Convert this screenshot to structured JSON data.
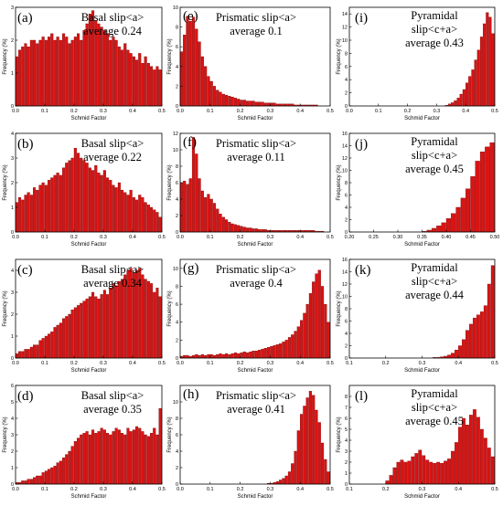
{
  "chart_data": [
    {
      "id": "a",
      "type": "bar",
      "panel_label": "(a)",
      "title_lines": [
        "Basal slip<a>",
        "average 0.24"
      ],
      "xlabel": "Schmid Factor",
      "ylabel": "Frequency (%)",
      "xlim": [
        0,
        0.5
      ],
      "ylim": [
        0,
        3
      ],
      "xticks": [
        "0.0",
        "0.1",
        "0.2",
        "0.3",
        "0.4",
        "0.5"
      ],
      "yticks": [
        "0",
        "1",
        "2",
        "3"
      ],
      "bin_start": 0,
      "bin_width": 0.01,
      "values": [
        1.5,
        1.7,
        1.8,
        1.9,
        1.8,
        2.0,
        2.0,
        1.9,
        2.0,
        2.1,
        2.0,
        2.1,
        2.2,
        2.0,
        2.1,
        2.0,
        2.2,
        2.1,
        1.9,
        2.0,
        2.1,
        2.2,
        2.0,
        2.3,
        2.5,
        2.8,
        2.9,
        2.6,
        2.5,
        2.4,
        2.3,
        2.2,
        2.0,
        2.1,
        2.0,
        1.8,
        1.7,
        1.9,
        1.7,
        1.6,
        1.5,
        1.4,
        1.6,
        1.3,
        1.5,
        1.3,
        1.2,
        1.1,
        1.2,
        1.1
      ]
    },
    {
      "id": "b",
      "type": "bar",
      "panel_label": "(b)",
      "title_lines": [
        "Basal slip<a>",
        "average 0.22"
      ],
      "xlabel": "Schmid Factor",
      "ylabel": "Frequency (%)",
      "xlim": [
        0,
        0.5
      ],
      "ylim": [
        0,
        4
      ],
      "xticks": [
        "0.0",
        "0.1",
        "0.2",
        "0.3",
        "0.4",
        "0.5"
      ],
      "yticks": [
        "0",
        "1",
        "2",
        "3",
        "4"
      ],
      "bin_start": 0,
      "bin_width": 0.01,
      "values": [
        1.2,
        1.4,
        1.3,
        1.5,
        1.6,
        1.5,
        1.8,
        1.7,
        1.9,
        2.0,
        1.9,
        2.1,
        2.2,
        2.3,
        2.4,
        2.3,
        2.6,
        2.8,
        2.9,
        3.0,
        3.4,
        3.2,
        3.0,
        2.9,
        2.8,
        2.6,
        2.5,
        2.7,
        2.4,
        2.3,
        2.5,
        2.2,
        2.1,
        1.9,
        1.8,
        2.0,
        1.7,
        1.6,
        1.5,
        1.7,
        1.4,
        1.3,
        1.5,
        1.4,
        1.2,
        1.1,
        1.0,
        0.9,
        0.8,
        0.6
      ]
    },
    {
      "id": "c",
      "type": "bar",
      "panel_label": "(c)",
      "title_lines": [
        "Basal slip<a>",
        "average 0.34"
      ],
      "xlabel": "Schmid Factor",
      "ylabel": "Frequency (%)",
      "xlim": [
        0,
        0.5
      ],
      "ylim": [
        0,
        4.5
      ],
      "xticks": [
        "0.0",
        "0.1",
        "0.2",
        "0.3",
        "0.4",
        "0.5"
      ],
      "yticks": [
        "0",
        "1",
        "2",
        "3",
        "4"
      ],
      "bin_start": 0,
      "bin_width": 0.01,
      "values": [
        0.2,
        0.3,
        0.3,
        0.4,
        0.4,
        0.5,
        0.6,
        0.6,
        0.8,
        0.9,
        1.0,
        1.1,
        1.2,
        1.4,
        1.5,
        1.6,
        1.8,
        1.9,
        2.0,
        2.2,
        2.3,
        2.4,
        2.5,
        2.6,
        2.7,
        2.8,
        3.0,
        2.8,
        2.7,
        2.9,
        3.1,
        2.9,
        3.2,
        3.4,
        3.3,
        3.5,
        3.6,
        3.8,
        4.0,
        4.1,
        3.9,
        4.0,
        4.1,
        3.8,
        3.6,
        3.5,
        3.4,
        3.0,
        3.2,
        2.8
      ]
    },
    {
      "id": "d",
      "type": "bar",
      "panel_label": "(d)",
      "title_lines": [
        "Basal slip<a>",
        "average 0.35"
      ],
      "xlabel": "Schmid Factor",
      "ylabel": "Frequency (%)",
      "xlim": [
        0,
        0.5
      ],
      "ylim": [
        0,
        6
      ],
      "xticks": [
        "0.0",
        "0.1",
        "0.2",
        "0.3",
        "0.4",
        "0.5"
      ],
      "yticks": [
        "0",
        "1",
        "2",
        "3",
        "4",
        "5",
        "6"
      ],
      "bin_start": 0,
      "bin_width": 0.01,
      "values": [
        0.1,
        0.1,
        0.2,
        0.2,
        0.3,
        0.3,
        0.4,
        0.5,
        0.5,
        0.7,
        0.8,
        0.9,
        1.0,
        1.1,
        1.3,
        1.4,
        1.6,
        1.8,
        2.0,
        2.3,
        2.6,
        2.8,
        3.0,
        3.1,
        3.2,
        3.0,
        3.3,
        3.1,
        3.2,
        3.4,
        3.3,
        3.1,
        3.0,
        3.2,
        3.4,
        3.3,
        3.1,
        3.0,
        3.4,
        3.2,
        3.3,
        3.5,
        3.4,
        3.2,
        3.0,
        2.9,
        3.1,
        3.4,
        3.0,
        4.6
      ]
    },
    {
      "id": "e",
      "type": "bar",
      "panel_label": "(e)",
      "title_lines": [
        "Prismatic slip<a>",
        "average 0.1"
      ],
      "xlabel": "Schmid Factor",
      "ylabel": "Frequency (%)",
      "xlim": [
        0,
        0.5
      ],
      "ylim": [
        0,
        10
      ],
      "xticks": [
        "0.0",
        "0.1",
        "0.2",
        "0.3",
        "0.4",
        "0.5"
      ],
      "yticks": [
        "0",
        "2",
        "4",
        "6",
        "8",
        "10"
      ],
      "bin_start": 0,
      "bin_width": 0.01,
      "values": [
        5.5,
        7.2,
        9.1,
        8.6,
        9.0,
        7.8,
        6.5,
        5.0,
        4.0,
        3.0,
        2.5,
        2.0,
        1.6,
        1.4,
        1.2,
        1.1,
        1.0,
        0.9,
        0.8,
        0.7,
        0.6,
        0.6,
        0.5,
        0.5,
        0.5,
        0.4,
        0.4,
        0.4,
        0.3,
        0.3,
        0.3,
        0.3,
        0.2,
        0.2,
        0.2,
        0.2,
        0.2,
        0.2,
        0.1,
        0.1,
        0.1,
        0.1,
        0.1,
        0.1,
        0.1,
        0.1,
        0,
        0,
        0,
        0
      ]
    },
    {
      "id": "f",
      "type": "bar",
      "panel_label": "(f)",
      "title_lines": [
        "Prismatic slip<a>",
        "average 0.11"
      ],
      "xlabel": "Schmid Factor",
      "ylabel": "Frequency (%)",
      "xlim": [
        0,
        0.5
      ],
      "ylim": [
        0,
        12
      ],
      "xticks": [
        "0.0",
        "0.1",
        "0.2",
        "0.3",
        "0.4",
        "0.5"
      ],
      "yticks": [
        "0",
        "2",
        "4",
        "6",
        "8",
        "10",
        "12"
      ],
      "bin_start": 0,
      "bin_width": 0.01,
      "values": [
        6.0,
        6.2,
        5.8,
        6.5,
        11.5,
        9.5,
        6.5,
        5.0,
        4.2,
        4.6,
        4.0,
        3.5,
        2.8,
        2.2,
        1.8,
        1.5,
        1.2,
        1.0,
        0.9,
        0.8,
        0.7,
        0.6,
        0.5,
        0.5,
        0.4,
        0.4,
        0.3,
        0.3,
        0.3,
        0.2,
        0.2,
        0.2,
        0.2,
        0.2,
        0.2,
        0.2,
        0.2,
        0.2,
        0.2,
        0.2,
        0.2,
        0.2,
        0.2,
        0.2,
        0.2,
        0.1,
        0.1,
        0.1,
        0,
        0
      ]
    },
    {
      "id": "g",
      "type": "bar",
      "panel_label": "(g)",
      "title_lines": [
        "Prismatic slip<a>",
        "average 0.4"
      ],
      "xlabel": "Schmid Factor",
      "ylabel": "Frequency (%)",
      "xlim": [
        0,
        0.5
      ],
      "ylim": [
        0,
        11
      ],
      "xticks": [
        "0.0",
        "0.1",
        "0.2",
        "0.3",
        "0.4",
        "0.5"
      ],
      "yticks": [
        "0",
        "2",
        "4",
        "6",
        "8",
        "10"
      ],
      "bin_start": 0,
      "bin_width": 0.01,
      "values": [
        0.2,
        0.3,
        0.3,
        0.2,
        0.3,
        0.4,
        0.3,
        0.4,
        0.3,
        0.4,
        0.4,
        0.3,
        0.4,
        0.5,
        0.4,
        0.5,
        0.4,
        0.5,
        0.6,
        0.5,
        0.6,
        0.7,
        0.6,
        0.7,
        0.8,
        0.8,
        0.9,
        1.0,
        1.1,
        1.2,
        1.3,
        1.4,
        1.5,
        1.6,
        1.8,
        2.0,
        2.3,
        2.6,
        3.0,
        3.5,
        4.2,
        5.0,
        6.0,
        7.2,
        8.5,
        9.4,
        9.8,
        8.0,
        6.0,
        4.0
      ]
    },
    {
      "id": "h",
      "type": "bar",
      "panel_label": "(h)",
      "title_lines": [
        "Prismatic slip<a>",
        "average 0.41"
      ],
      "xlabel": "Schmid Factor",
      "ylabel": "Frequency (%)",
      "xlim": [
        0,
        0.5
      ],
      "ylim": [
        0,
        12
      ],
      "xticks": [
        "0.0",
        "0.1",
        "0.2",
        "0.3",
        "0.4",
        "0.5"
      ],
      "yticks": [
        "0",
        "2",
        "4",
        "6",
        "8",
        "10"
      ],
      "bin_start": 0,
      "bin_width": 0.01,
      "values": [
        0,
        0,
        0,
        0,
        0,
        0,
        0,
        0,
        0,
        0,
        0,
        0,
        0,
        0,
        0,
        0,
        0,
        0,
        0,
        0,
        0,
        0,
        0,
        0,
        0,
        0,
        0,
        0,
        0,
        0.1,
        0.1,
        0.2,
        0.3,
        0.5,
        0.7,
        1.0,
        1.5,
        2.5,
        4.0,
        6.5,
        8.5,
        9.5,
        10.5,
        11.3,
        10.8,
        9.0,
        7.5,
        5.0,
        3.0,
        1.5
      ]
    },
    {
      "id": "i",
      "type": "bar",
      "panel_label": "(i)",
      "title_lines": [
        "Pyramidal",
        "slip<c+a>",
        "average 0.43"
      ],
      "xlabel": "Schmid Factor",
      "ylabel": "Frequency (%)",
      "xlim": [
        0,
        0.5
      ],
      "ylim": [
        0,
        15
      ],
      "xticks": [
        "0.0",
        "0.1",
        "0.2",
        "0.3",
        "0.4",
        "0.5"
      ],
      "yticks": [
        "0",
        "2",
        "4",
        "6",
        "8",
        "10",
        "12",
        "14"
      ],
      "bin_start": 0,
      "bin_width": 0.01,
      "values": [
        0,
        0,
        0,
        0,
        0,
        0,
        0,
        0,
        0,
        0,
        0,
        0,
        0,
        0,
        0,
        0,
        0,
        0,
        0,
        0,
        0,
        0,
        0,
        0,
        0,
        0,
        0,
        0,
        0,
        0,
        0,
        0,
        0,
        0.1,
        0.3,
        0.5,
        0.8,
        1.2,
        1.8,
        2.5,
        3.5,
        4.5,
        5.5,
        7.0,
        8.5,
        10.5,
        12.5,
        14.2,
        13.5,
        11.0
      ]
    },
    {
      "id": "j",
      "type": "bar",
      "panel_label": "(j)",
      "title_lines": [
        "Pyramidal",
        "slip<c+a>",
        "average 0.45"
      ],
      "xlabel": "Schmid Factor",
      "ylabel": "Frequency (%)",
      "xlim": [
        0.2,
        0.5
      ],
      "ylim": [
        0,
        16
      ],
      "xticks": [
        "0.20",
        "0.25",
        "0.30",
        "0.35",
        "0.40",
        "0.45",
        "0.50"
      ],
      "yticks": [
        "0",
        "2",
        "4",
        "6",
        "8",
        "10",
        "12",
        "14",
        "16"
      ],
      "bin_start": 0.2,
      "bin_width": 0.01,
      "values": [
        0,
        0,
        0,
        0,
        0,
        0,
        0,
        0,
        0,
        0,
        0,
        0,
        0,
        0,
        0,
        0.1,
        0.3,
        0.6,
        1.0,
        1.5,
        2.2,
        3.0,
        4.0,
        5.5,
        7.0,
        9.0,
        11.5,
        13.0,
        13.8,
        14.5
      ]
    },
    {
      "id": "k",
      "type": "bar",
      "panel_label": "(k)",
      "title_lines": [
        "Pyramidal",
        "slip<c+a>",
        "average 0.44"
      ],
      "xlabel": "Schmid Factor",
      "ylabel": "Frequency (%)",
      "xlim": [
        0.1,
        0.5
      ],
      "ylim": [
        0,
        16
      ],
      "xticks": [
        "0.1",
        "0.2",
        "0.3",
        "0.4",
        "0.5"
      ],
      "yticks": [
        "0",
        "2",
        "4",
        "6",
        "8",
        "10",
        "12",
        "14",
        "16"
      ],
      "bin_start": 0.1,
      "bin_width": 0.01,
      "values": [
        0,
        0,
        0,
        0,
        0,
        0,
        0,
        0,
        0,
        0,
        0,
        0,
        0,
        0,
        0,
        0,
        0,
        0,
        0,
        0,
        0,
        0,
        0,
        0.1,
        0.1,
        0.2,
        0.3,
        0.5,
        0.8,
        1.3,
        2.0,
        3.0,
        4.5,
        5.5,
        6.5,
        7.0,
        7.5,
        8.5,
        12.0,
        15.0
      ]
    },
    {
      "id": "l",
      "type": "bar",
      "panel_label": "(l)",
      "title_lines": [
        "Pyramidal",
        "slip<c+a>",
        "average 0.45"
      ],
      "xlabel": "Schmid Factor",
      "ylabel": "Frequency (%)",
      "xlim": [
        0.1,
        0.5
      ],
      "ylim": [
        0,
        9
      ],
      "xticks": [
        "0.1",
        "0.2",
        "0.3",
        "0.4",
        "0.5"
      ],
      "yticks": [
        "0",
        "1",
        "2",
        "3",
        "4",
        "5",
        "6",
        "7",
        "8"
      ],
      "bin_start": 0.1,
      "bin_width": 0.01,
      "values": [
        0,
        0,
        0,
        0,
        0,
        0,
        0,
        0,
        0,
        0,
        0.3,
        0.8,
        1.5,
        2.0,
        2.2,
        2.0,
        2.1,
        2.5,
        2.8,
        3.1,
        2.6,
        2.2,
        2.0,
        1.9,
        2.0,
        1.9,
        2.1,
        2.3,
        3.0,
        3.8,
        5.2,
        6.0,
        5.4,
        6.3,
        6.8,
        6.1,
        5.0,
        4.2,
        3.3,
        2.5
      ]
    }
  ]
}
